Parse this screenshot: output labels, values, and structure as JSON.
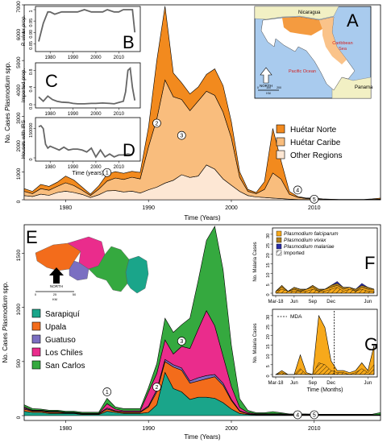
{
  "colors": {
    "huetar_norte": "#f28a1e",
    "huetar_caribe": "#f9bd7d",
    "other_regions": "#fde7d4",
    "sarapiqui": "#1aa58a",
    "upala": "#f36c1b",
    "guatuso": "#7b6fc2",
    "los_chiles": "#ea2c8c",
    "san_carlos": "#35a93f",
    "falciparum": "#f7a91b",
    "vivax": "#b07f1d",
    "malariae": "#2a2ea8",
    "land": "#f2f0c4",
    "sea": "#a9cbee",
    "costa_rica": "#ffffff"
  },
  "panel_top": {
    "letter": "A",
    "ylabel": "No. Cases Plasmodium spp.",
    "ylabel_plain": "No. Cases ",
    "ylabel_italic": "Plasmodium",
    "ylabel_tail": " spp.",
    "xlabel": "Time (Years)",
    "yticks": [
      "0",
      "1000",
      "2000",
      "3000",
      "4000",
      "5000",
      "6000",
      "7000"
    ],
    "xticks": [
      "1980",
      "1990",
      "2000",
      "2010"
    ],
    "legend": [
      "Huétar Norte",
      "Huétar Caribe",
      "Other Regions"
    ],
    "events": [
      "1",
      "2",
      "3",
      "4",
      "5"
    ]
  },
  "inset_b": {
    "letter": "B",
    "ylabel": "P. vivax prop.",
    "yticks": [
      "0.85",
      "0.90",
      "0.95",
      "1"
    ],
    "xticks": [
      "1980",
      "1990",
      "2000",
      "2010"
    ]
  },
  "inset_c": {
    "letter": "C",
    "ylabel": "Imported prop.",
    "yticks": [
      "0.0",
      "0.4",
      "0.8"
    ],
    "xticks": [
      "1980",
      "1990",
      "2000",
      "2010"
    ]
  },
  "inset_d": {
    "letter": "D",
    "ylabel": "Houses with IRS",
    "yticks": [
      "0",
      "150000"
    ],
    "xticks": [
      "1980",
      "1990",
      "2000",
      "2010"
    ],
    "xlabel": "Time (years)"
  },
  "map_a": {
    "labels": [
      "Nicaragua",
      "Caribbean Sea",
      "Pacific Ocean",
      "Panama",
      "NORTH",
      "0",
      "100",
      "200",
      "KM"
    ]
  },
  "panel_bottom": {
    "letter": "E",
    "ylabel_plain": "No. Cases ",
    "ylabel_italic": "Plasmodium",
    "ylabel_tail": " spp.",
    "xlabel": "Time (Years)",
    "yticks": [
      "0",
      "500",
      "1000",
      "1500"
    ],
    "xticks": [
      "1980",
      "1990",
      "2000",
      "2010"
    ],
    "legend": [
      "Sarapiquí",
      "Upala",
      "Guatuso",
      "Los Chiles",
      "San Carlos"
    ],
    "events": [
      "1",
      "2",
      "3",
      "4",
      "5"
    ],
    "map_labels": [
      "NORTH",
      "0",
      "25",
      "50",
      "KM"
    ]
  },
  "inset_f": {
    "letter": "F",
    "ylabel": "No. Malaria Cases",
    "yticks": [
      "0",
      "5",
      "10",
      "15",
      "20",
      "25",
      "30"
    ],
    "xticks": [
      "Mar-18",
      "Jun",
      "Sep",
      "Dec",
      "Jun"
    ],
    "legend": [
      "Plasmodium falciparum",
      "Plasmodium vivax",
      "Plasmodium malariae",
      "Imported"
    ]
  },
  "inset_g": {
    "letter": "G",
    "ylabel": "No. Malaria Cases",
    "yticks": [
      "0",
      "5",
      "10",
      "15",
      "20",
      "25",
      "30"
    ],
    "xticks": [
      "Mar-18",
      "Jun",
      "Sep",
      "Dec",
      "Jun"
    ],
    "xlabel": "Time (Months)",
    "mda_label": "MDA"
  },
  "chart_data": [
    {
      "type": "area",
      "ylabel": "No. Cases Plasmodium spp.",
      "xlabel": "Time (Years)",
      "xlim": [
        1975,
        2018
      ],
      "ylim": [
        0,
        7000
      ],
      "x": [
        1975,
        1976,
        1977,
        1978,
        1979,
        1980,
        1981,
        1982,
        1983,
        1984,
        1985,
        1986,
        1987,
        1988,
        1989,
        1990,
        1991,
        1992,
        1993,
        1994,
        1995,
        1996,
        1997,
        1998,
        1999,
        2000,
        2001,
        2002,
        2003,
        2004,
        2005,
        2006,
        2007,
        2008,
        2009,
        2010,
        2011,
        2012,
        2013,
        2014,
        2015,
        2016,
        2017,
        2018
      ],
      "series": [
        {
          "name": "Other Regions",
          "values": [
            150,
            120,
            200,
            160,
            260,
            310,
            260,
            190,
            80,
            180,
            320,
            330,
            280,
            310,
            240,
            360,
            450,
            600,
            700,
            900,
            800,
            850,
            1250,
            1100,
            750,
            520,
            300,
            150,
            100,
            80,
            60,
            40,
            20,
            10,
            5,
            5,
            2,
            2,
            2,
            2,
            2,
            2,
            2,
            2
          ]
        },
        {
          "name": "Huétar Caribe",
          "values": [
            150,
            100,
            200,
            180,
            220,
            300,
            250,
            150,
            70,
            200,
            350,
            450,
            450,
            500,
            510,
            1540,
            2450,
            3700,
            3000,
            2700,
            2400,
            2700,
            2650,
            2650,
            2400,
            1700,
            500,
            150,
            120,
            290,
            900,
            700,
            180,
            80,
            40,
            40,
            20,
            10,
            5,
            5,
            5,
            5,
            10,
            20
          ]
        },
        {
          "name": "Huétar Norte",
          "values": [
            100,
            80,
            150,
            140,
            150,
            240,
            200,
            110,
            50,
            120,
            250,
            230,
            220,
            210,
            230,
            700,
            2100,
            2650,
            850,
            600,
            600,
            500,
            600,
            950,
            950,
            580,
            200,
            70,
            40,
            280,
            1600,
            650,
            100,
            30,
            20,
            15,
            10,
            8,
            5,
            5,
            5,
            5,
            20,
            40
          ]
        }
      ]
    },
    {
      "type": "line",
      "name": "B",
      "ylabel": "P. vivax prop.",
      "xlim": [
        1975,
        2018
      ],
      "ylim": [
        0.83,
        1.0
      ],
      "x": [
        1975,
        1977,
        1979,
        1980,
        1982,
        1985,
        1988,
        1990,
        1992,
        1995,
        1998,
        2000,
        2003,
        2005,
        2008,
        2010,
        2012,
        2014,
        2015,
        2016,
        2017
      ],
      "values": [
        0.86,
        0.94,
        0.99,
        0.99,
        0.98,
        0.99,
        0.99,
        0.99,
        0.99,
        1.0,
        0.99,
        0.99,
        0.99,
        1.0,
        0.99,
        0.99,
        1.0,
        1.0,
        1.0,
        1.0,
        0.9
      ]
    },
    {
      "type": "line",
      "name": "C",
      "ylabel": "Imported prop.",
      "xlim": [
        1975,
        2018
      ],
      "ylim": [
        0,
        0.9
      ],
      "x": [
        1975,
        1977,
        1979,
        1981,
        1983,
        1985,
        1988,
        1990,
        1992,
        1995,
        1998,
        2000,
        2003,
        2006,
        2008,
        2010,
        2012,
        2013,
        2014,
        2015,
        2016,
        2017
      ],
      "values": [
        0.18,
        0.08,
        0.2,
        0.12,
        0.08,
        0.06,
        0.05,
        0.03,
        0.02,
        0.02,
        0.03,
        0.03,
        0.04,
        0.03,
        0.02,
        0.05,
        0.08,
        0.3,
        0.8,
        0.85,
        0.4,
        0.1
      ]
    },
    {
      "type": "line",
      "name": "D",
      "ylabel": "Houses with IRS",
      "xlabel": "Time (years)",
      "xlim": [
        1975,
        2018
      ],
      "ylim": [
        0,
        190000
      ],
      "x": [
        1975,
        1976,
        1977,
        1978,
        1979,
        1980,
        1982,
        1984,
        1986,
        1988,
        1990,
        1992,
        1994,
        1996,
        1998,
        2000,
        2002,
        2004,
        2006,
        2008,
        2010,
        2012,
        2014,
        2016
      ],
      "values": [
        160000,
        165000,
        150000,
        70000,
        50000,
        60000,
        50000,
        40000,
        55000,
        40000,
        45000,
        45000,
        40000,
        30000,
        50000,
        5000,
        40000,
        5000,
        20000,
        5000,
        15000,
        15000,
        20000,
        15000
      ]
    },
    {
      "type": "area",
      "ylabel": "No. Cases Plasmodium spp.",
      "xlabel": "Time (Years)",
      "xlim": [
        1975,
        2018
      ],
      "ylim": [
        0,
        1750
      ],
      "x": [
        1975,
        1976,
        1977,
        1978,
        1979,
        1980,
        1981,
        1982,
        1983,
        1984,
        1985,
        1986,
        1987,
        1988,
        1989,
        1990,
        1991,
        1992,
        1993,
        1994,
        1995,
        1996,
        1997,
        1998,
        1999,
        2000,
        2001,
        2002,
        2003,
        2004,
        2005,
        2006,
        2007,
        2008,
        2009,
        2010,
        2011,
        2012,
        2013,
        2014,
        2015,
        2016,
        2017,
        2018
      ],
      "series": [
        {
          "name": "Sarapiquí",
          "values": [
            40,
            30,
            30,
            20,
            20,
            20,
            20,
            10,
            10,
            10,
            40,
            30,
            20,
            20,
            20,
            30,
            100,
            400,
            250,
            220,
            150,
            170,
            170,
            160,
            120,
            60,
            20,
            10,
            5,
            5,
            5,
            5,
            3,
            3,
            3,
            2,
            2,
            2,
            2,
            2,
            2,
            2,
            2,
            2
          ]
        },
        {
          "name": "Upala",
          "values": [
            20,
            10,
            10,
            10,
            10,
            5,
            5,
            5,
            5,
            5,
            20,
            10,
            10,
            10,
            10,
            50,
            120,
            100,
            200,
            200,
            150,
            150,
            170,
            200,
            160,
            80,
            20,
            5,
            5,
            5,
            5,
            5,
            3,
            3,
            3,
            2,
            2,
            2,
            2,
            2,
            2,
            2,
            2,
            2
          ]
        },
        {
          "name": "Guatuso",
          "values": [
            10,
            5,
            5,
            5,
            5,
            3,
            3,
            3,
            3,
            3,
            10,
            5,
            5,
            5,
            5,
            10,
            20,
            20,
            20,
            20,
            20,
            30,
            30,
            20,
            20,
            10,
            5,
            3,
            2,
            2,
            2,
            2,
            2,
            2,
            2,
            2,
            2,
            2,
            2,
            2,
            2,
            2,
            2,
            2
          ]
        },
        {
          "name": "Los Chiles",
          "values": [
            10,
            5,
            5,
            5,
            5,
            3,
            3,
            3,
            3,
            3,
            40,
            15,
            10,
            10,
            10,
            130,
            150,
            180,
            100,
            200,
            300,
            450,
            600,
            450,
            250,
            120,
            30,
            10,
            5,
            5,
            5,
            5,
            3,
            3,
            3,
            2,
            2,
            2,
            2,
            2,
            2,
            2,
            2,
            2
          ]
        },
        {
          "name": "San Carlos",
          "values": [
            20,
            15,
            10,
            10,
            10,
            10,
            10,
            10,
            10,
            10,
            50,
            20,
            20,
            20,
            20,
            40,
            90,
            200,
            200,
            200,
            280,
            450,
            650,
            920,
            800,
            380,
            80,
            20,
            10,
            10,
            20,
            10,
            5,
            5,
            5,
            5,
            5,
            5,
            5,
            5,
            5,
            5,
            5,
            20
          ]
        }
      ]
    },
    {
      "type": "bar",
      "name": "F",
      "ylabel": "No. Malaria Cases",
      "ylim": [
        0,
        32
      ],
      "categories": [
        "Mar-18",
        "Apr",
        "May",
        "Jun",
        "Jul",
        "Aug",
        "Sep",
        "Oct",
        "Nov",
        "Dec",
        "Jan",
        "Feb",
        "Mar",
        "Apr",
        "May",
        "Jun",
        "Jul"
      ],
      "series": [
        {
          "name": "Plasmodium falciparum",
          "values": [
            1,
            3,
            1,
            2,
            1,
            2,
            3,
            1,
            2,
            3,
            4,
            2,
            3,
            1,
            3,
            2,
            2
          ]
        },
        {
          "name": "Plasmodium vivax",
          "values": [
            0,
            1,
            0,
            1,
            1,
            0,
            1,
            1,
            0,
            1,
            1,
            1,
            0,
            1,
            1,
            1,
            0
          ]
        },
        {
          "name": "Plasmodium malariae",
          "values": [
            0,
            0,
            0,
            0,
            0,
            0,
            0,
            0,
            0,
            0,
            1,
            0,
            0,
            0,
            1,
            0,
            0
          ]
        },
        {
          "name": "Imported",
          "values": [
            1,
            2,
            1,
            1,
            1,
            1,
            2,
            1,
            1,
            2,
            3,
            1,
            2,
            1,
            2,
            1,
            1
          ]
        }
      ]
    },
    {
      "type": "area",
      "name": "G",
      "ylabel": "No. Malaria Cases",
      "xlabel": "Time (Months)",
      "ylim": [
        0,
        32
      ],
      "categories": [
        "Mar-18",
        "Apr",
        "May",
        "Jun",
        "Jul",
        "Aug",
        "Sep",
        "Oct",
        "Nov",
        "Dec",
        "Jan",
        "Feb",
        "Mar",
        "Apr",
        "May",
        "Jun",
        "Jul"
      ],
      "annotation": "MDA",
      "series": [
        {
          "name": "Plasmodium falciparum",
          "values": [
            0,
            2,
            0,
            0,
            10,
            1,
            0,
            30,
            24,
            7,
            2,
            2,
            1,
            2,
            6,
            2,
            15
          ]
        },
        {
          "name": "Imported",
          "values": [
            0,
            1,
            0,
            0,
            3,
            0,
            0,
            6,
            5,
            2,
            1,
            1,
            0,
            1,
            3,
            1,
            5
          ]
        }
      ]
    }
  ]
}
